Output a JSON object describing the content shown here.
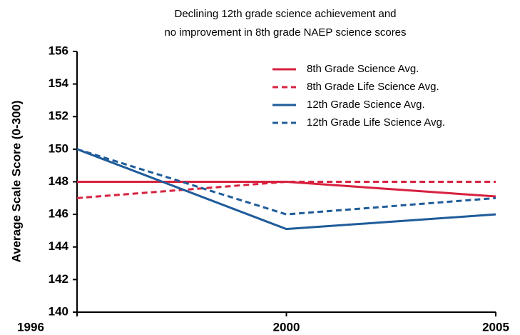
{
  "chart_data": {
    "type": "line",
    "title": [
      "Declining 12th grade science achievement and",
      "no improvement in 8th grade NAEP science scores"
    ],
    "y_label": "Average Scale Score (0-300)",
    "categories": [
      "1996",
      "2000",
      "2005"
    ],
    "ylim": [
      140,
      156
    ],
    "yticks": [
      140,
      142,
      144,
      146,
      148,
      150,
      152,
      154,
      156
    ],
    "grid": false,
    "legend": "upper right",
    "series": [
      {
        "name": "8th Grade Science Avg.",
        "color": "#d7213f",
        "dashed": false,
        "values": [
          148,
          148,
          147.1
        ]
      },
      {
        "name": "8th Grade Life Science Avg.",
        "color": "#d7213f",
        "dashed": true,
        "values": [
          147,
          148,
          148
        ]
      },
      {
        "name": "12th Grade Science Avg.",
        "color": "#1f5c99",
        "dashed": false,
        "values": [
          150,
          145.1,
          146
        ]
      },
      {
        "name": "12th Grade Life Science Avg.",
        "color": "#1f5c99",
        "dashed": true,
        "values": [
          150,
          146,
          147
        ]
      }
    ]
  }
}
